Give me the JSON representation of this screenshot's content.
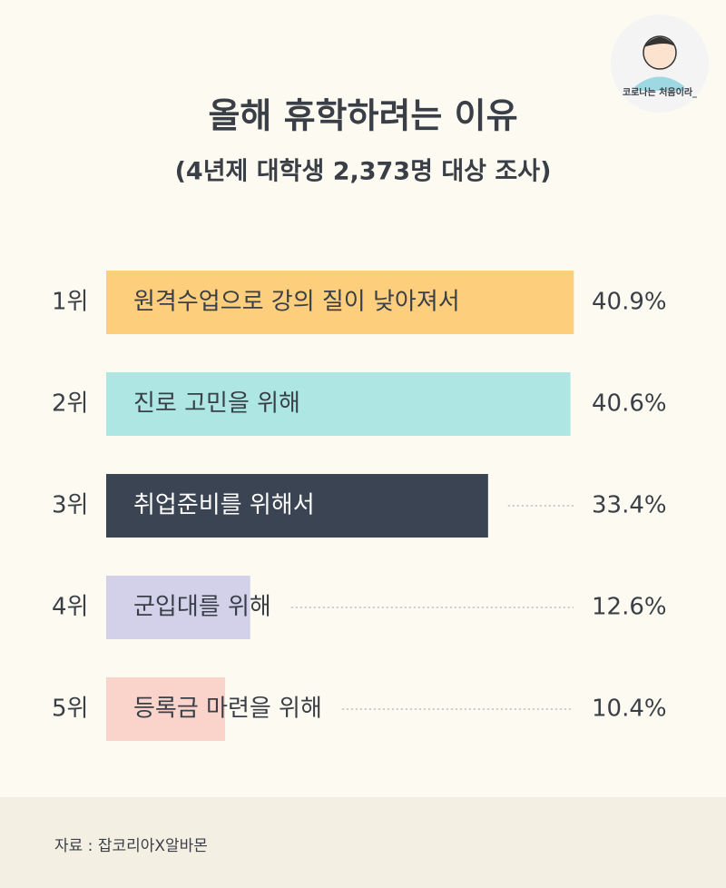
{
  "badge": "코로나는 처음이라_",
  "chart_data": {
    "type": "bar",
    "title": "올해 휴학하려는 이유",
    "subtitle": "(4년제 대학생 2,373명 대상 조사)",
    "ranks": [
      "1위",
      "2위",
      "3위",
      "4위",
      "5위"
    ],
    "categories": [
      "원격수업으로 강의 질이 낮아져서",
      "진로 고민을 위해",
      "취업준비를 위해서",
      "군입대를 위해",
      "등록금 마련을 위해"
    ],
    "values": [
      40.9,
      40.6,
      33.4,
      12.6,
      10.4
    ],
    "value_labels": [
      "40.9%",
      "40.6%",
      "33.4%",
      "12.6%",
      "10.4%"
    ],
    "colors": [
      "#fdcf7c",
      "#ade6e3",
      "#3a4452",
      "#d3d1ea",
      "#fad3cb"
    ]
  },
  "source": "자료 : 잡코리아X알바몬"
}
